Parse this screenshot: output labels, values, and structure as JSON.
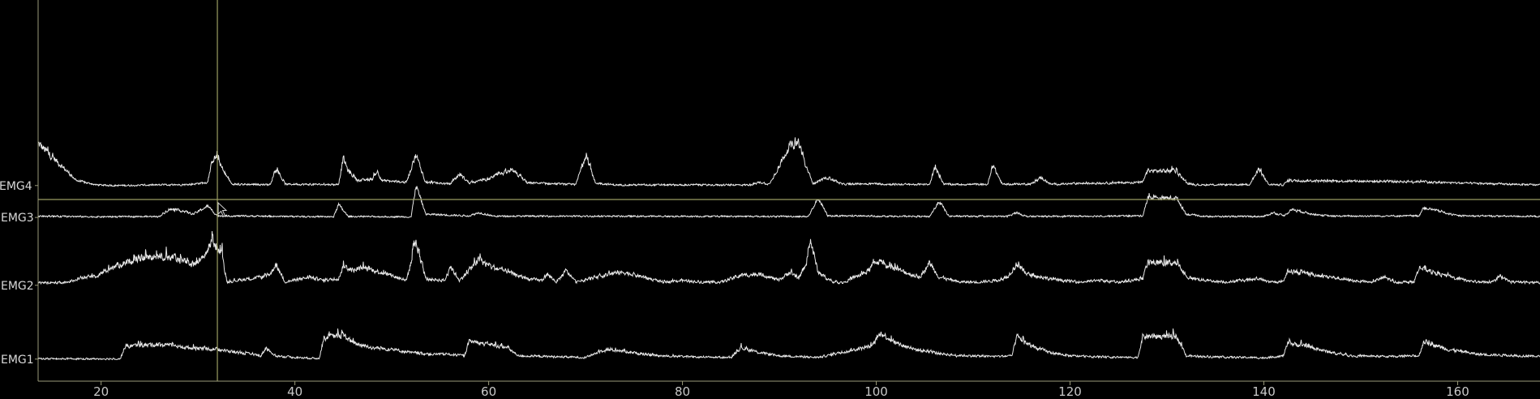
{
  "chart_data": {
    "type": "line",
    "title": "",
    "xlabel": "",
    "ylabel": "",
    "xlim": [
      13.5,
      168.5
    ],
    "grid": false,
    "legend": "none",
    "x_ticks": [
      "20",
      "40",
      "60",
      "80",
      "100",
      "120",
      "140",
      "160"
    ],
    "cursor_x": 32,
    "colors": {
      "background": "#000000",
      "trace": "#e6e6e6",
      "axis": "#9a9a7a",
      "cursor": "#9b9d62",
      "tick_label": "#c8c8c8"
    },
    "channels": [
      {
        "name": "EMG4",
        "baseline_level": 0.465,
        "burst_profile": [
          [
            13.5,
            13.0
          ],
          [
            17.5,
            1.5
          ],
          [
            19.5,
            0.2
          ],
          [
            21.5,
            0.0
          ],
          [
            29.0,
            0.3
          ],
          [
            31.0,
            1.0
          ],
          [
            31.5,
            8.0
          ],
          [
            32.0,
            9.0
          ],
          [
            32.5,
            5.0
          ],
          [
            33.5,
            0.4
          ],
          [
            37.5,
            0.3
          ],
          [
            38.0,
            5.5
          ],
          [
            39.0,
            0.4
          ],
          [
            44.5,
            0.3
          ],
          [
            45.0,
            8.5
          ],
          [
            45.5,
            4.5
          ],
          [
            46.5,
            1.5
          ],
          [
            48.0,
            2.0
          ],
          [
            48.5,
            4.5
          ],
          [
            49.0,
            1.5
          ],
          [
            51.5,
            1.0
          ],
          [
            52.5,
            9.5
          ],
          [
            53.5,
            1.0
          ],
          [
            56.0,
            0.5
          ],
          [
            57.0,
            3.5
          ],
          [
            58.0,
            0.8
          ],
          [
            60.0,
            2.0
          ],
          [
            61.0,
            3.5
          ],
          [
            62.5,
            4.5
          ],
          [
            64.0,
            0.8
          ],
          [
            69.0,
            0.3
          ],
          [
            70.0,
            9.5
          ],
          [
            71.0,
            0.8
          ],
          [
            73.0,
            0.2
          ],
          [
            87.0,
            0.2
          ],
          [
            88.0,
            1.0
          ],
          [
            89.0,
            0.4
          ],
          [
            91.0,
            12.0
          ],
          [
            92.0,
            13.5
          ],
          [
            92.7,
            6.0
          ],
          [
            93.5,
            0.6
          ],
          [
            95.0,
            2.5
          ],
          [
            96.5,
            0.4
          ],
          [
            100.0,
            0.6
          ],
          [
            101.0,
            0.4
          ],
          [
            105.5,
            0.3
          ],
          [
            106.0,
            5.5
          ],
          [
            107.0,
            0.4
          ],
          [
            111.5,
            0.3
          ],
          [
            112.0,
            6.5
          ],
          [
            113.0,
            0.4
          ],
          [
            116.0,
            0.5
          ],
          [
            117.0,
            2.5
          ],
          [
            118.0,
            0.4
          ],
          [
            127.5,
            1.0
          ],
          [
            128.0,
            4.5
          ],
          [
            131.0,
            4.5
          ],
          [
            132.0,
            0.8
          ],
          [
            133.0,
            0.2
          ],
          [
            138.5,
            0.3
          ],
          [
            139.5,
            5.0
          ],
          [
            140.5,
            0.3
          ],
          [
            142.0,
            0.2
          ],
          [
            142.5,
            1.5
          ],
          [
            156.0,
            1.2
          ],
          [
            156.5,
            1.5
          ],
          [
            157.0,
            1.0
          ],
          [
            168.5,
            0.2
          ]
        ],
        "noise_level": 0.35,
        "spike_frequency": 0.9
      },
      {
        "name": "EMG3",
        "baseline_level": 0.545,
        "burst_profile": [
          [
            13.5,
            0.4
          ],
          [
            19.5,
            0.2
          ],
          [
            26.0,
            0.3
          ],
          [
            27.0,
            2.5
          ],
          [
            28.5,
            2.0
          ],
          [
            29.5,
            1.0
          ],
          [
            31.0,
            3.5
          ],
          [
            32.0,
            0.5
          ],
          [
            44.0,
            0.2
          ],
          [
            44.5,
            4.0
          ],
          [
            45.5,
            0.3
          ],
          [
            52.0,
            0.2
          ],
          [
            52.5,
            10.0
          ],
          [
            53.5,
            1.0
          ],
          [
            58.0,
            0.5
          ],
          [
            59.0,
            1.5
          ],
          [
            60.5,
            0.4
          ],
          [
            93.0,
            0.3
          ],
          [
            94.0,
            6.0
          ],
          [
            95.0,
            0.5
          ],
          [
            105.5,
            0.3
          ],
          [
            106.5,
            5.0
          ],
          [
            107.5,
            0.4
          ],
          [
            113.5,
            0.3
          ],
          [
            114.5,
            1.5
          ],
          [
            115.5,
            0.3
          ],
          [
            127.5,
            0.5
          ],
          [
            128.0,
            6.0
          ],
          [
            131.0,
            6.0
          ],
          [
            132.0,
            1.0
          ],
          [
            134.0,
            0.3
          ],
          [
            140.0,
            0.3
          ],
          [
            141.0,
            1.5
          ],
          [
            142.0,
            0.5
          ],
          [
            143.0,
            2.5
          ],
          [
            145.0,
            1.0
          ],
          [
            147.0,
            0.4
          ],
          [
            156.0,
            0.5
          ],
          [
            156.5,
            3.0
          ],
          [
            158.0,
            2.0
          ],
          [
            160.0,
            0.5
          ],
          [
            168.5,
            0.3
          ]
        ],
        "noise_level": 0.3,
        "spike_frequency": 0.6
      },
      {
        "name": "EMG2",
        "baseline_level": 0.715,
        "burst_profile": [
          [
            13.5,
            0.8
          ],
          [
            16.5,
            0.8
          ],
          [
            17.5,
            2.0
          ],
          [
            19.5,
            3.0
          ],
          [
            21.5,
            6.0
          ],
          [
            23.5,
            8.0
          ],
          [
            25.5,
            9.0
          ],
          [
            27.5,
            8.5
          ],
          [
            29.5,
            6.5
          ],
          [
            30.5,
            8.0
          ],
          [
            31.5,
            14.0
          ],
          [
            32.5,
            9.0
          ],
          [
            33.0,
            1.0
          ],
          [
            34.0,
            1.5
          ],
          [
            36.5,
            2.5
          ],
          [
            37.5,
            3.5
          ],
          [
            38.0,
            6.5
          ],
          [
            39.0,
            1.0
          ],
          [
            41.5,
            2.5
          ],
          [
            43.0,
            1.5
          ],
          [
            44.5,
            2.0
          ],
          [
            45.0,
            6.0
          ],
          [
            46.0,
            4.5
          ],
          [
            47.0,
            5.5
          ],
          [
            49.5,
            3.5
          ],
          [
            51.5,
            1.5
          ],
          [
            52.5,
            13.0
          ],
          [
            53.5,
            2.0
          ],
          [
            55.5,
            1.5
          ],
          [
            56.0,
            6.0
          ],
          [
            57.0,
            1.5
          ],
          [
            59.0,
            8.0
          ],
          [
            60.0,
            6.0
          ],
          [
            62.0,
            4.0
          ],
          [
            64.0,
            2.0
          ],
          [
            65.5,
            1.5
          ],
          [
            66.0,
            3.5
          ],
          [
            67.0,
            1.0
          ],
          [
            68.0,
            4.5
          ],
          [
            69.0,
            1.0
          ],
          [
            72.5,
            3.5
          ],
          [
            74.0,
            4.0
          ],
          [
            76.0,
            2.5
          ],
          [
            78.0,
            1.0
          ],
          [
            80.0,
            1.5
          ],
          [
            82.0,
            1.0
          ],
          [
            84.0,
            1.0
          ],
          [
            86.0,
            3.0
          ],
          [
            88.0,
            3.5
          ],
          [
            90.0,
            1.5
          ],
          [
            91.0,
            4.0
          ],
          [
            92.0,
            2.0
          ],
          [
            92.8,
            7.0
          ],
          [
            93.2,
            14.0
          ],
          [
            94.0,
            4.0
          ],
          [
            95.5,
            1.0
          ],
          [
            96.5,
            0.8
          ],
          [
            99.0,
            4.0
          ],
          [
            100.0,
            7.5
          ],
          [
            101.5,
            5.5
          ],
          [
            103.0,
            4.0
          ],
          [
            104.5,
            2.5
          ],
          [
            105.5,
            7.0
          ],
          [
            106.5,
            2.5
          ],
          [
            108.5,
            1.0
          ],
          [
            110.5,
            1.0
          ],
          [
            112.5,
            1.5
          ],
          [
            113.5,
            2.5
          ],
          [
            114.5,
            6.5
          ],
          [
            115.5,
            3.5
          ],
          [
            117.0,
            2.5
          ],
          [
            119.0,
            1.5
          ],
          [
            121.0,
            1.0
          ],
          [
            123.0,
            1.5
          ],
          [
            125.0,
            1.0
          ],
          [
            127.5,
            2.0
          ],
          [
            128.0,
            7.0
          ],
          [
            131.0,
            7.0
          ],
          [
            132.0,
            2.5
          ],
          [
            134.0,
            1.5
          ],
          [
            136.0,
            1.0
          ],
          [
            138.0,
            1.5
          ],
          [
            139.5,
            2.0
          ],
          [
            140.5,
            1.0
          ],
          [
            142.0,
            1.0
          ],
          [
            142.5,
            4.5
          ],
          [
            144.5,
            3.5
          ],
          [
            147.0,
            2.5
          ],
          [
            149.0,
            1.5
          ],
          [
            151.0,
            1.0
          ],
          [
            152.5,
            2.5
          ],
          [
            153.5,
            1.0
          ],
          [
            155.5,
            1.0
          ],
          [
            156.0,
            5.5
          ],
          [
            157.5,
            4.0
          ],
          [
            160.0,
            2.0
          ],
          [
            162.0,
            1.0
          ],
          [
            163.5,
            1.0
          ],
          [
            164.5,
            2.5
          ],
          [
            165.5,
            1.0
          ],
          [
            168.5,
            0.8
          ]
        ],
        "noise_level": 0.4,
        "spike_frequency": 1.0
      },
      {
        "name": "EMG1",
        "baseline_level": 0.9,
        "burst_profile": [
          [
            13.5,
            0.1
          ],
          [
            22.0,
            0.1
          ],
          [
            22.5,
            4.0
          ],
          [
            26.0,
            4.5
          ],
          [
            29.0,
            3.5
          ],
          [
            32.0,
            3.0
          ],
          [
            34.0,
            2.0
          ],
          [
            35.5,
            1.5
          ],
          [
            36.5,
            1.0
          ],
          [
            37.0,
            3.5
          ],
          [
            38.0,
            1.0
          ],
          [
            40.0,
            0.5
          ],
          [
            42.5,
            0.2
          ],
          [
            43.0,
            6.5
          ],
          [
            45.0,
            7.5
          ],
          [
            46.0,
            5.0
          ],
          [
            48.0,
            3.5
          ],
          [
            50.0,
            3.0
          ],
          [
            52.0,
            2.0
          ],
          [
            54.0,
            1.5
          ],
          [
            56.0,
            1.5
          ],
          [
            57.5,
            1.0
          ],
          [
            58.0,
            5.5
          ],
          [
            60.0,
            4.5
          ],
          [
            62.0,
            3.5
          ],
          [
            63.0,
            1.0
          ],
          [
            66.0,
            0.8
          ],
          [
            70.0,
            0.5
          ],
          [
            72.0,
            3.0
          ],
          [
            74.0,
            2.5
          ],
          [
            76.0,
            1.5
          ],
          [
            78.0,
            1.0
          ],
          [
            82.0,
            0.6
          ],
          [
            85.0,
            0.5
          ],
          [
            86.0,
            3.5
          ],
          [
            88.0,
            2.0
          ],
          [
            90.0,
            1.0
          ],
          [
            94.0,
            0.5
          ],
          [
            99.5,
            4.0
          ],
          [
            100.5,
            8.0
          ],
          [
            102.0,
            5.0
          ],
          [
            104.0,
            3.0
          ],
          [
            106.0,
            2.0
          ],
          [
            108.0,
            1.2
          ],
          [
            112.0,
            0.8
          ],
          [
            114.0,
            1.0
          ],
          [
            114.5,
            7.0
          ],
          [
            116.0,
            4.0
          ],
          [
            118.0,
            2.0
          ],
          [
            120.0,
            1.0
          ],
          [
            124.0,
            0.6
          ],
          [
            127.0,
            0.5
          ],
          [
            127.5,
            7.0
          ],
          [
            131.0,
            7.0
          ],
          [
            132.0,
            1.0
          ],
          [
            136.0,
            0.6
          ],
          [
            140.0,
            0.4
          ],
          [
            142.0,
            1.0
          ],
          [
            142.5,
            5.0
          ],
          [
            145.0,
            3.5
          ],
          [
            147.0,
            2.0
          ],
          [
            149.0,
            1.0
          ],
          [
            153.0,
            0.8
          ],
          [
            156.0,
            1.0
          ],
          [
            156.5,
            5.5
          ],
          [
            159.0,
            3.0
          ],
          [
            162.0,
            1.5
          ],
          [
            168.5,
            0.8
          ]
        ],
        "noise_level": 0.35,
        "spike_frequency": 0.9
      }
    ]
  }
}
